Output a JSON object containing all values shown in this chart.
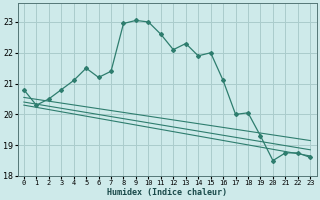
{
  "xlabel": "Humidex (Indice chaleur)",
  "background_color": "#ceeaea",
  "grid_color": "#aacccc",
  "line_color": "#2e7d6e",
  "xlim": [
    -0.5,
    23.5
  ],
  "ylim": [
    18.0,
    23.6
  ],
  "yticks": [
    18,
    19,
    20,
    21,
    22,
    23
  ],
  "xticks": [
    0,
    1,
    2,
    3,
    4,
    5,
    6,
    7,
    8,
    9,
    10,
    11,
    12,
    13,
    14,
    15,
    16,
    17,
    18,
    19,
    20,
    21,
    22,
    23
  ],
  "series1_x": [
    0,
    1,
    2,
    3,
    4,
    5,
    6,
    7,
    8,
    9,
    10,
    11,
    12,
    13,
    14,
    15,
    16,
    17,
    18,
    19,
    20,
    21,
    22,
    23
  ],
  "series1_y": [
    20.8,
    20.3,
    20.5,
    20.8,
    21.1,
    21.5,
    21.2,
    21.4,
    22.95,
    23.05,
    23.0,
    22.6,
    22.1,
    22.3,
    21.9,
    22.0,
    21.1,
    20.0,
    20.05,
    19.3,
    18.5,
    18.75,
    18.75,
    18.6
  ],
  "series2_x": [
    0,
    23
  ],
  "series2_y": [
    20.55,
    19.15
  ],
  "series3_x": [
    0,
    23
  ],
  "series3_y": [
    20.4,
    18.85
  ],
  "series4_x": [
    0,
    23
  ],
  "series4_y": [
    20.3,
    18.65
  ]
}
